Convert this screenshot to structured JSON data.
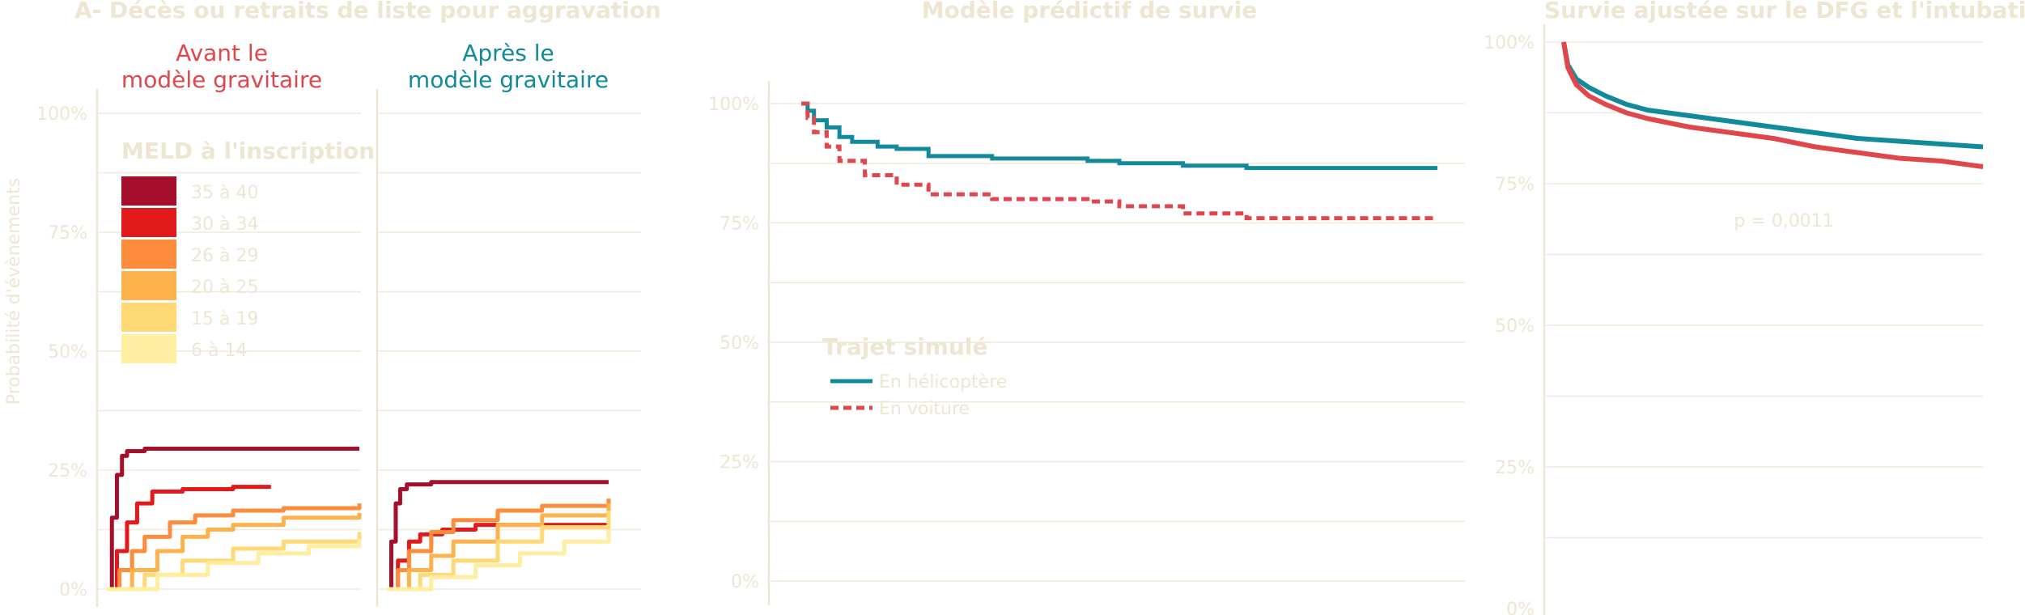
{
  "panelA": {
    "title": "A- Décès ou retraits de liste pour aggravation",
    "ylabel": "Probabilité d'évènements",
    "facet_before": [
      "Avant le",
      "modèle gravitaire"
    ],
    "facet_after": [
      "Après le",
      "modèle gravitaire"
    ],
    "facet_before_color": "#e0474c",
    "facet_after_color": "#118a9c",
    "legend_title": "MELD à l'inscription",
    "yticks": [
      "0%",
      "25%",
      "50%",
      "75%",
      "100%"
    ],
    "chart_data": {
      "type": "line",
      "ylim": [
        0,
        1
      ],
      "x_unit": "relative time (0–1)",
      "series": [
        {
          "name": "35 à 40",
          "color": "#a50f2b",
          "before": [
            [
              0,
              0
            ],
            [
              0.02,
              0.15
            ],
            [
              0.04,
              0.24
            ],
            [
              0.06,
              0.28
            ],
            [
              0.08,
              0.29
            ],
            [
              0.15,
              0.295
            ],
            [
              0.3,
              0.295
            ],
            [
              1,
              0.295
            ]
          ],
          "after": [
            [
              0,
              0
            ],
            [
              0.02,
              0.1
            ],
            [
              0.04,
              0.18
            ],
            [
              0.06,
              0.21
            ],
            [
              0.09,
              0.22
            ],
            [
              0.2,
              0.225
            ],
            [
              1,
              0.225
            ]
          ]
        },
        {
          "name": "30 à 34",
          "color": "#e31a1c",
          "before": [
            [
              0,
              0
            ],
            [
              0.04,
              0.08
            ],
            [
              0.08,
              0.14
            ],
            [
              0.12,
              0.18
            ],
            [
              0.18,
              0.205
            ],
            [
              0.3,
              0.21
            ],
            [
              0.5,
              0.215
            ],
            [
              0.65,
              0.215
            ]
          ],
          "after": [
            [
              0,
              0
            ],
            [
              0.05,
              0.06
            ],
            [
              0.1,
              0.1
            ],
            [
              0.15,
              0.115
            ],
            [
              0.25,
              0.125
            ],
            [
              0.4,
              0.135
            ],
            [
              1,
              0.14
            ]
          ]
        },
        {
          "name": "26 à 29",
          "color": "#fd8d3c",
          "before": [
            [
              0,
              0
            ],
            [
              0.05,
              0.04
            ],
            [
              0.1,
              0.08
            ],
            [
              0.15,
              0.11
            ],
            [
              0.25,
              0.14
            ],
            [
              0.35,
              0.155
            ],
            [
              0.5,
              0.165
            ],
            [
              0.7,
              0.17
            ],
            [
              1,
              0.18
            ]
          ],
          "after": [
            [
              0,
              0
            ],
            [
              0.05,
              0.04
            ],
            [
              0.1,
              0.08
            ],
            [
              0.2,
              0.12
            ],
            [
              0.3,
              0.145
            ],
            [
              0.5,
              0.165
            ],
            [
              0.7,
              0.175
            ],
            [
              1,
              0.19
            ]
          ]
        },
        {
          "name": "20 à 25",
          "color": "#feb24c",
          "before": [
            [
              0,
              0
            ],
            [
              0.1,
              0.04
            ],
            [
              0.2,
              0.08
            ],
            [
              0.3,
              0.11
            ],
            [
              0.4,
              0.125
            ],
            [
              0.5,
              0.135
            ],
            [
              0.7,
              0.15
            ],
            [
              1,
              0.16
            ]
          ],
          "after": [
            [
              0,
              0
            ],
            [
              0.1,
              0.04
            ],
            [
              0.2,
              0.07
            ],
            [
              0.3,
              0.1
            ],
            [
              0.5,
              0.135
            ],
            [
              0.7,
              0.155
            ],
            [
              1,
              0.18
            ]
          ]
        },
        {
          "name": "15 à 19",
          "color": "#fed976",
          "before": [
            [
              0,
              0
            ],
            [
              0.15,
              0.03
            ],
            [
              0.3,
              0.06
            ],
            [
              0.5,
              0.085
            ],
            [
              0.7,
              0.1
            ],
            [
              1,
              0.12
            ]
          ],
          "after": [
            [
              0,
              0
            ],
            [
              0.15,
              0.03
            ],
            [
              0.3,
              0.06
            ],
            [
              0.5,
              0.1
            ],
            [
              0.7,
              0.13
            ],
            [
              1,
              0.165
            ]
          ]
        },
        {
          "name": "6 à 14",
          "color": "#ffeda0",
          "before": [
            [
              0,
              0
            ],
            [
              0.2,
              0.03
            ],
            [
              0.4,
              0.055
            ],
            [
              0.6,
              0.075
            ],
            [
              0.8,
              0.09
            ],
            [
              1,
              0.105
            ]
          ],
          "after": [
            [
              0,
              0
            ],
            [
              0.2,
              0.025
            ],
            [
              0.4,
              0.05
            ],
            [
              0.6,
              0.075
            ],
            [
              0.8,
              0.1
            ],
            [
              1,
              0.125
            ]
          ]
        }
      ]
    }
  },
  "panelB": {
    "title": "Modèle prédictif de survie",
    "yticks": [
      "0%",
      "25%",
      "50%",
      "75%",
      "100%"
    ],
    "legend_title": "Trajet simulé",
    "chart_data": {
      "type": "line",
      "ylim": [
        0,
        1
      ],
      "x_unit": "relative time (0–1)",
      "series": [
        {
          "name": "En hélicoptère",
          "color": "#118a9c",
          "style": "solid",
          "points": [
            [
              0,
              1
            ],
            [
              0.01,
              0.985
            ],
            [
              0.02,
              0.965
            ],
            [
              0.04,
              0.95
            ],
            [
              0.06,
              0.93
            ],
            [
              0.08,
              0.92
            ],
            [
              0.12,
              0.91
            ],
            [
              0.15,
              0.905
            ],
            [
              0.2,
              0.89
            ],
            [
              0.3,
              0.885
            ],
            [
              0.45,
              0.88
            ],
            [
              0.5,
              0.875
            ],
            [
              0.6,
              0.87
            ],
            [
              0.7,
              0.865
            ],
            [
              1,
              0.865
            ]
          ]
        },
        {
          "name": "En voiture",
          "color": "#e0474c",
          "style": "dashed",
          "points": [
            [
              0,
              1
            ],
            [
              0.01,
              0.97
            ],
            [
              0.02,
              0.94
            ],
            [
              0.04,
              0.91
            ],
            [
              0.06,
              0.88
            ],
            [
              0.1,
              0.85
            ],
            [
              0.15,
              0.83
            ],
            [
              0.2,
              0.81
            ],
            [
              0.3,
              0.8
            ],
            [
              0.45,
              0.795
            ],
            [
              0.5,
              0.785
            ],
            [
              0.6,
              0.77
            ],
            [
              0.7,
              0.76
            ],
            [
              1,
              0.76
            ]
          ]
        }
      ]
    }
  },
  "panelC": {
    "title": "Survie ajustée sur le DFG et l'intubation",
    "yticks": [
      "0%",
      "25%",
      "50%",
      "75%",
      "100%"
    ],
    "pvalue": "p =  0,0011",
    "chart_data": {
      "type": "line",
      "ylim": [
        0,
        1
      ],
      "x_unit": "relative time (0–1)",
      "series": [
        {
          "color": "#118a9c",
          "points": [
            [
              0,
              1
            ],
            [
              0.01,
              0.96
            ],
            [
              0.03,
              0.935
            ],
            [
              0.06,
              0.92
            ],
            [
              0.1,
              0.905
            ],
            [
              0.15,
              0.89
            ],
            [
              0.2,
              0.88
            ],
            [
              0.3,
              0.87
            ],
            [
              0.4,
              0.86
            ],
            [
              0.5,
              0.85
            ],
            [
              0.6,
              0.84
            ],
            [
              0.7,
              0.83
            ],
            [
              0.8,
              0.825
            ],
            [
              0.9,
              0.82
            ],
            [
              1,
              0.815
            ]
          ]
        },
        {
          "color": "#e0474c",
          "points": [
            [
              0,
              1
            ],
            [
              0.01,
              0.955
            ],
            [
              0.03,
              0.925
            ],
            [
              0.06,
              0.905
            ],
            [
              0.1,
              0.89
            ],
            [
              0.15,
              0.875
            ],
            [
              0.2,
              0.865
            ],
            [
              0.3,
              0.85
            ],
            [
              0.4,
              0.84
            ],
            [
              0.5,
              0.83
            ],
            [
              0.6,
              0.815
            ],
            [
              0.7,
              0.805
            ],
            [
              0.8,
              0.795
            ],
            [
              0.9,
              0.79
            ],
            [
              1,
              0.78
            ]
          ]
        }
      ]
    }
  }
}
